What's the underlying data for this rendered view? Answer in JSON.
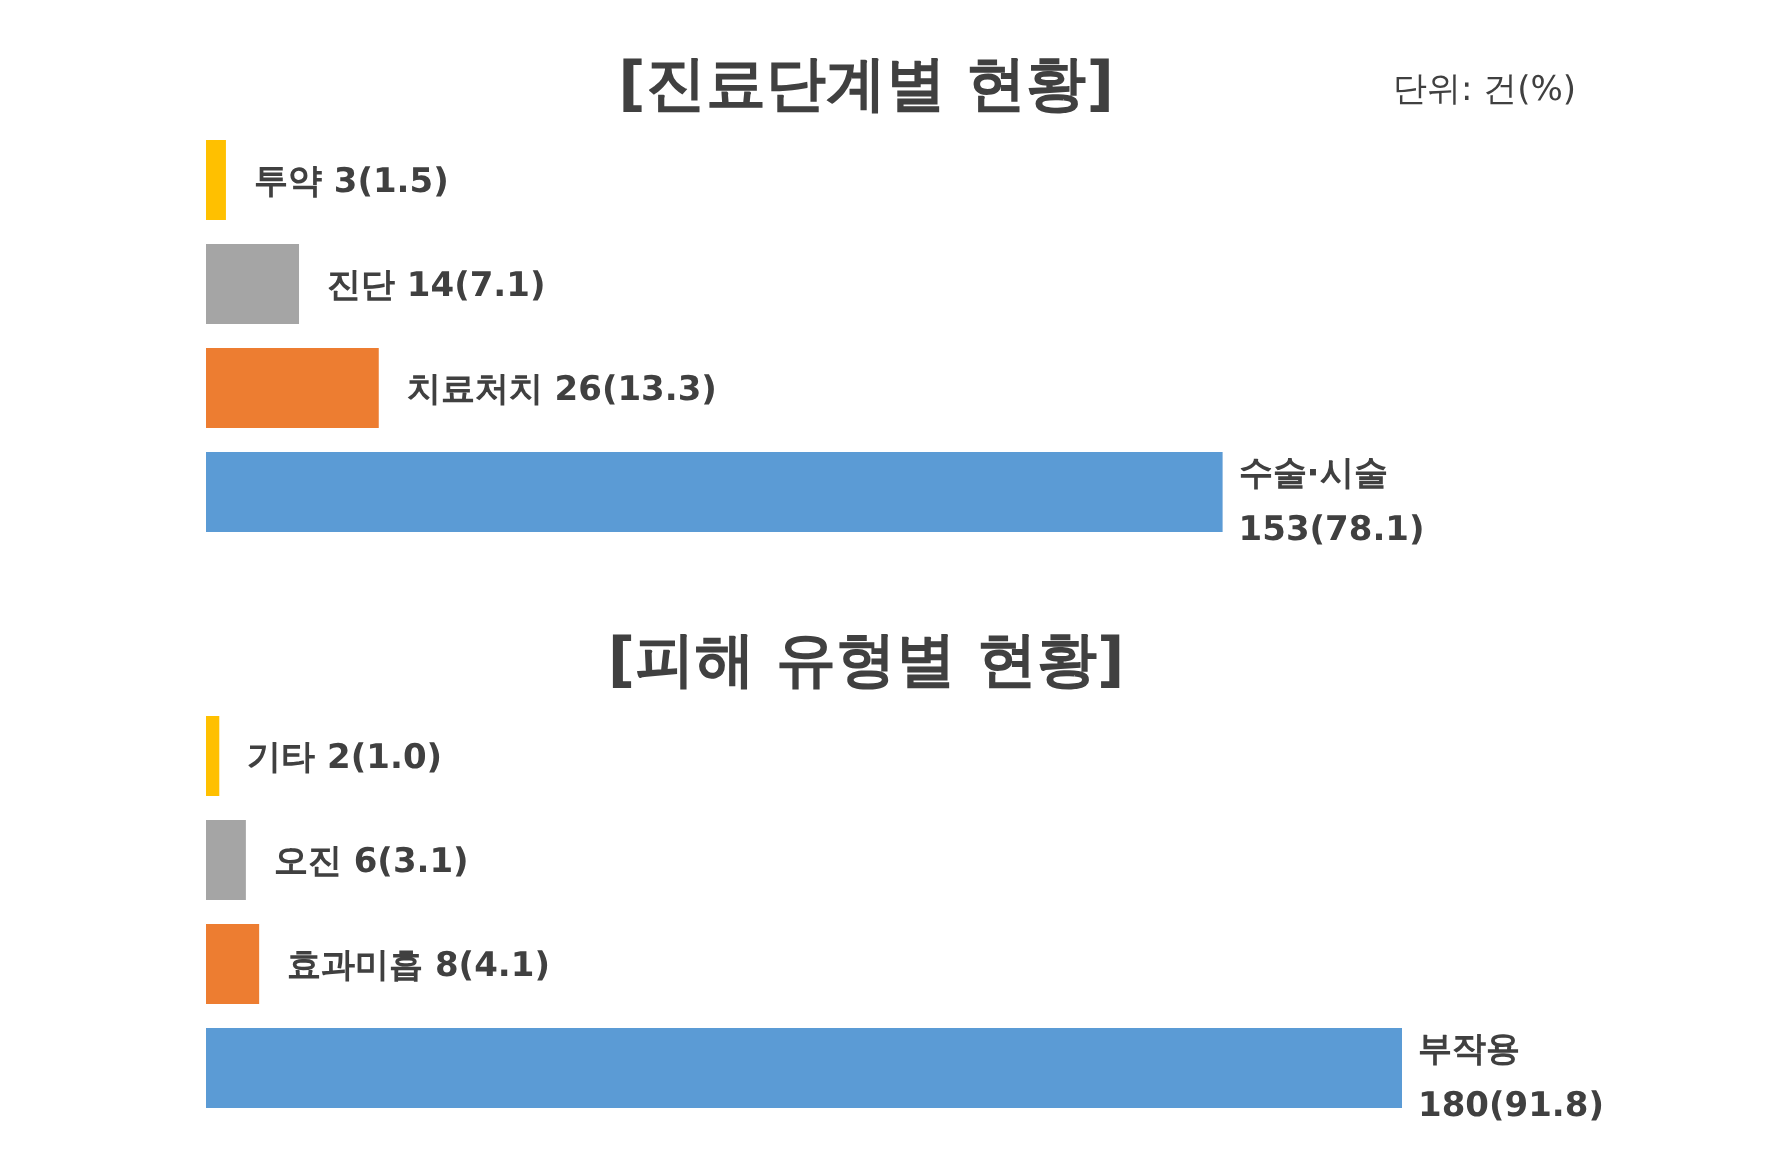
{
  "chart_data": [
    {
      "type": "bar",
      "orientation": "horizontal",
      "title": "[진료단계별 현황]",
      "annotations": [
        "단위: 건(%)"
      ],
      "categories": [
        "투약",
        "진단",
        "치료처치",
        "수술·시술"
      ],
      "values": [
        3,
        14,
        26,
        153
      ],
      "colors": [
        "#ffc000",
        "#a5a5a5",
        "#ed7d31",
        "#5b9bd5"
      ],
      "value_labels": [
        "3(1.5)",
        "14(7.1)",
        "26(13.3)",
        "153(78.1)"
      ]
    },
    {
      "type": "bar",
      "orientation": "horizontal",
      "title": "[피해 유형별 현황]",
      "categories": [
        "기타",
        "오진",
        "효과미흡",
        "부작용"
      ],
      "values": [
        2,
        6,
        8,
        180
      ],
      "colors": [
        "#ffc000",
        "#a5a5a5",
        "#ed7d31",
        "#5b9bd5"
      ],
      "value_labels": [
        "2(1.0)",
        "6(3.1)",
        "8(4.1)",
        "180(91.8)"
      ]
    }
  ]
}
